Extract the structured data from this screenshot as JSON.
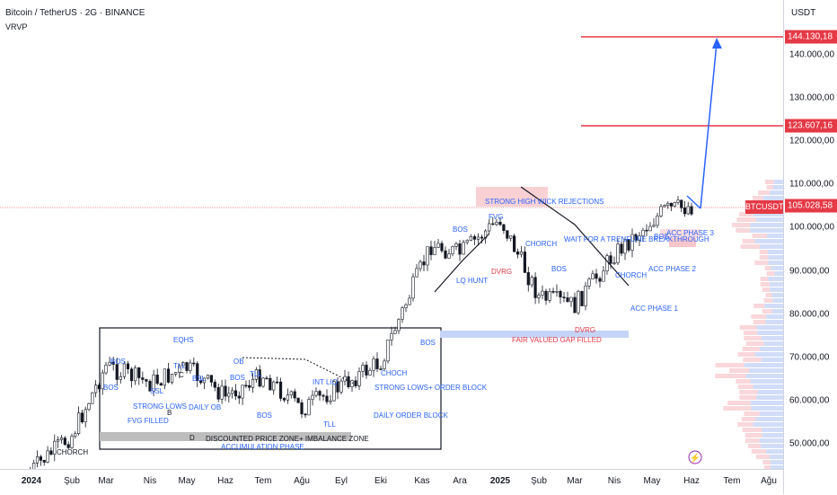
{
  "header": {
    "symbol_title": "Bitcoin / TetherUS · 2G · BINANCE",
    "indicator": "VRVP"
  },
  "currency": "USDT",
  "colors": {
    "blue_annotation": "#2962ff",
    "red_level": "#e53946",
    "bull": "#26a69a",
    "candle_fill": "#131722",
    "zone_red": "#f7c6ca",
    "zone_blue": "#c5d4f6"
  },
  "price_axis": {
    "ticks": [
      "140.000,00",
      "130.000,00",
      "120.000,00",
      "110.000,00",
      "100.000,00",
      "90.000,00",
      "80.000,00",
      "70.000,00",
      "60.000,00",
      "50.000,00"
    ],
    "tags": [
      {
        "text": "144.130,18",
        "price": 144130.18,
        "color": "#e53946"
      },
      {
        "text": "123.607,16",
        "price": 123607.16,
        "color": "#e53946"
      },
      {
        "text": "105.028,58",
        "price": 105028.58,
        "color": "#e53946"
      }
    ],
    "current_symbol_label": "BTCUSDT"
  },
  "time_axis": {
    "labels": [
      {
        "text": "2024",
        "bold": true
      },
      {
        "text": "Şub",
        "bold": false
      },
      {
        "text": "Mar",
        "bold": false
      },
      {
        "text": "Nis",
        "bold": false
      },
      {
        "text": "May",
        "bold": false
      },
      {
        "text": "Haz",
        "bold": false
      },
      {
        "text": "Tem",
        "bold": false
      },
      {
        "text": "Ağu",
        "bold": false
      },
      {
        "text": "Eyl",
        "bold": false
      },
      {
        "text": "Eki",
        "bold": false
      },
      {
        "text": "Kas",
        "bold": false
      },
      {
        "text": "Ara",
        "bold": false
      },
      {
        "text": "2025",
        "bold": true
      },
      {
        "text": "Şub",
        "bold": false
      },
      {
        "text": "Mar",
        "bold": false
      },
      {
        "text": "Nis",
        "bold": false
      },
      {
        "text": "May",
        "bold": false
      },
      {
        "text": "Haz",
        "bold": false
      },
      {
        "text": "Tem",
        "bold": false
      },
      {
        "text": "Ağu",
        "bold": false
      }
    ]
  },
  "annotations": {
    "choch_left": "CHORCH",
    "eqhs": "EQHS",
    "bos": "BOS",
    "tll": "TLL",
    "bsl": "BSL",
    "ssl": "SSL",
    "ob": "OB",
    "b": "B",
    "c": "C",
    "d": "D",
    "strong_lows": "STRONG LOWS",
    "daily_ob": "DAILY OB",
    "fvg_filled": "FVG FILLED",
    "int_liq": "INT LIQ",
    "discount_zone": "DISCOUNTED PRICE ZONE+ IMBALANCE ZONE",
    "accumulation": "ACCUMULATION PHASE",
    "strong_lows_ob": "STRONG LOWS+ ORDER BLOCK",
    "daily_order_block": "DAILY ORDER BLOCK",
    "choch": "CHOCH",
    "strong_high": "STRONG HIGH WICK REJECTIONS",
    "fvg": "FVG",
    "lq_hunt": "LQ HUNT",
    "dvrg": "DVRG",
    "wait_trendline": "WAIT FOR A TRENFLINE BREAKTHROUGH",
    "chorch": "CHORCH",
    "fair_value": "FAIR VALUED GAP FILLED",
    "acc1": "ACC PHASE 1",
    "acc2": "ACC PHASE 2",
    "acc3": "ACC PHASE 3"
  },
  "chart_data": {
    "type": "candlestick",
    "title": "Bitcoin / TetherUS · 2G · BINANCE",
    "x": [
      "2024",
      "Şub",
      "Mar",
      "Nis",
      "May",
      "Haz",
      "Tem",
      "Ağu",
      "Eyl",
      "Eki",
      "Kas",
      "Ara",
      "2025",
      "Şub",
      "Mar",
      "Nis",
      "May",
      "Haz",
      "Tem",
      "Ağu"
    ],
    "ylim": [
      45000,
      150000
    ],
    "levels": [
      144130.18,
      123607.16,
      105028.58
    ],
    "close_path": [
      {
        "x": "2024",
        "y": 43000
      },
      {
        "x": "Şub",
        "y": 52000
      },
      {
        "x": "Mar",
        "y": 68000
      },
      {
        "x": "Nis",
        "y": 64000
      },
      {
        "x": "May",
        "y": 67500
      },
      {
        "x": "Haz",
        "y": 61000
      },
      {
        "x": "Tem",
        "y": 66000
      },
      {
        "x": "Ağu",
        "y": 58000
      },
      {
        "x": "Eyl",
        "y": 63500
      },
      {
        "x": "Eki",
        "y": 69000
      },
      {
        "x": "Kas",
        "y": 96000
      },
      {
        "x": "Ara",
        "y": 94000
      },
      {
        "x": "2025",
        "y": 102000
      },
      {
        "x": "Şub",
        "y": 84000
      },
      {
        "x": "Mar",
        "y": 82000
      },
      {
        "x": "Nis",
        "y": 94000
      },
      {
        "x": "May",
        "y": 104000
      },
      {
        "x": "Haz",
        "y": 105028.58
      }
    ],
    "projection_target": 144130.18
  }
}
